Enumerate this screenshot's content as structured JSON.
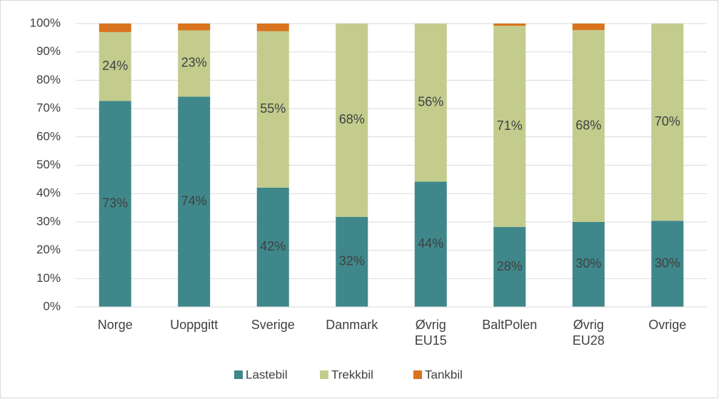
{
  "chart_data": {
    "type": "stacked-bar",
    "categories": [
      "Norge",
      "Uoppgitt",
      "Sverige",
      "Danmark",
      "Øvrig EU15",
      "BaltPolen",
      "Øvrig EU28",
      "Ovrige"
    ],
    "series": [
      {
        "name": "Lastebil",
        "color": "#3f878a",
        "values": [
          72.7,
          74.2,
          42.1,
          31.8,
          44.2,
          28.2,
          30.0,
          30.4
        ],
        "value_labels": [
          "73%",
          "74%",
          "42%",
          "32%",
          "44%",
          "28%",
          "30%",
          "30%"
        ]
      },
      {
        "name": "Trekkbil",
        "color": "#c3cc8d",
        "values": [
          24.3,
          23.4,
          55.2,
          68.2,
          55.8,
          71.0,
          67.7,
          69.6
        ],
        "value_labels": [
          "24%",
          "23%",
          "55%",
          "68%",
          "56%",
          "71%",
          "68%",
          "70%"
        ]
      },
      {
        "name": "Tankbil",
        "color": "#d9731e",
        "values": [
          3.0,
          2.4,
          2.7,
          0,
          0,
          0.8,
          2.3,
          0
        ]
      }
    ],
    "ylim": [
      0,
      100
    ],
    "yticks": [
      {
        "value": 0,
        "label": "0%"
      },
      {
        "value": 10,
        "label": "10%"
      },
      {
        "value": 20,
        "label": "20%"
      },
      {
        "value": 30,
        "label": "30%"
      },
      {
        "value": 40,
        "label": "40%"
      },
      {
        "value": 50,
        "label": "50%"
      },
      {
        "value": 60,
        "label": "60%"
      },
      {
        "value": 70,
        "label": "70%"
      },
      {
        "value": 80,
        "label": "80%"
      },
      {
        "value": 90,
        "label": "90%"
      },
      {
        "value": 100,
        "label": "100%"
      }
    ],
    "grid": true,
    "legend": "bottom"
  }
}
